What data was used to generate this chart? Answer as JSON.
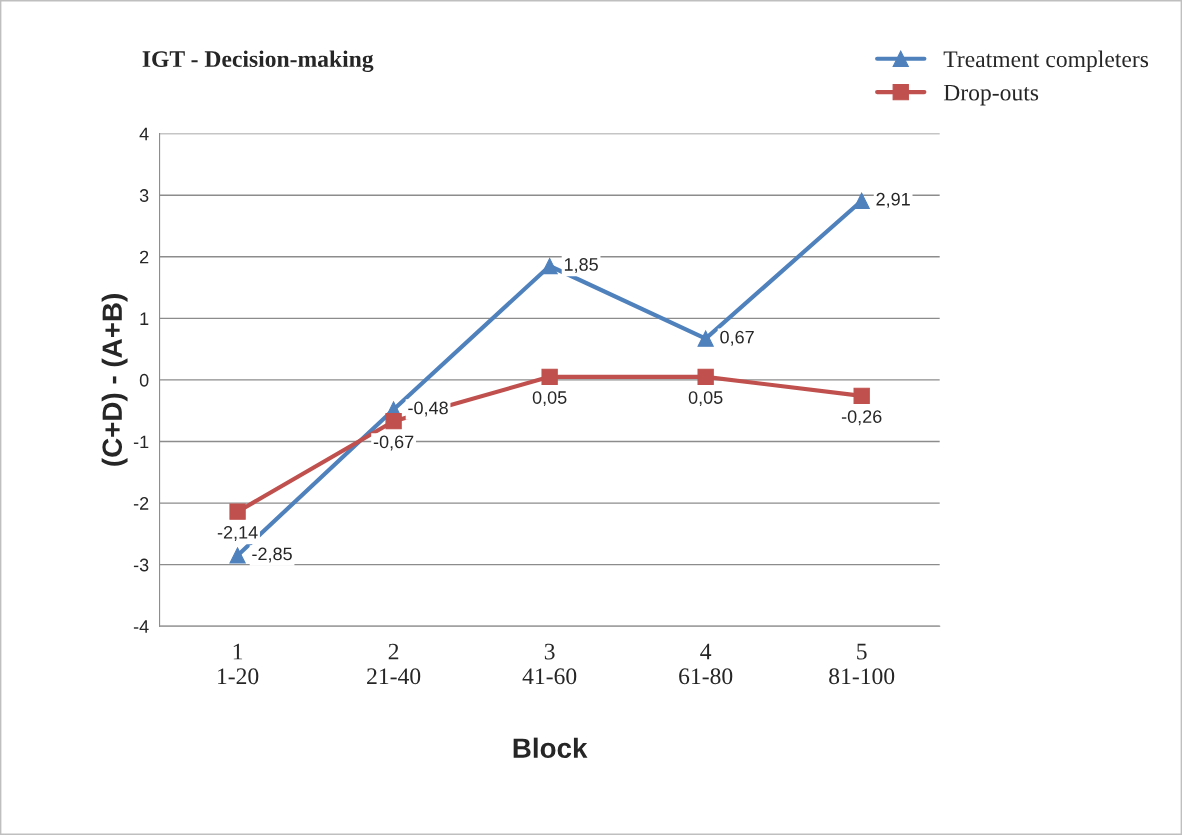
{
  "chart_data": {
    "type": "line",
    "title": "IGT - Decision-making",
    "xlabel": "Block",
    "ylabel": "(C+D) - (A+B)",
    "categories": [
      "1\n1-20",
      "2\n21-40",
      "3\n41-60",
      "4\n61-80",
      "5\n81-100"
    ],
    "series": [
      {
        "name": "Treatment completers",
        "color": "#4f81bd",
        "marker": "triangle",
        "values": [
          -2.85,
          -0.48,
          1.85,
          0.67,
          2.91
        ],
        "value_labels": [
          "-2,85",
          "-0,48",
          "1,85",
          "0,67",
          "2,91"
        ]
      },
      {
        "name": "Drop-outs",
        "color": "#c0504d",
        "marker": "square",
        "values": [
          -2.14,
          -0.67,
          0.05,
          0.05,
          -0.26
        ],
        "value_labels": [
          "-2,14",
          "-0,67",
          "0,05",
          "0,05",
          "-0,26"
        ]
      }
    ],
    "ylim": [
      -4,
      4
    ],
    "yticks": [
      -4,
      -3,
      -2,
      -1,
      0,
      1,
      2,
      3,
      4
    ],
    "grid": "y",
    "legend": "top right",
    "line_style": "solid"
  }
}
